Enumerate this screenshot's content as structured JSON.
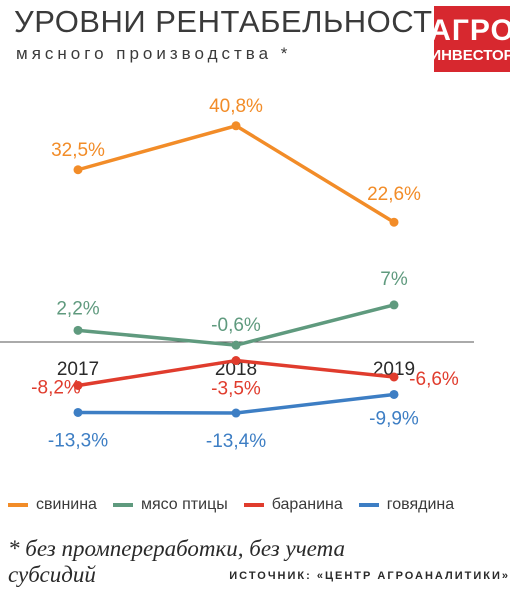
{
  "header": {
    "title": "УРОВНИ РЕНТАБЕЛЬНОСТИ",
    "subtitle": "мясного производства *"
  },
  "logo": {
    "line1": "АГРО",
    "line2": "ИНВЕСТОР",
    "color": "#d7282f"
  },
  "footer": {
    "footnote": "* без промпереработки, без учета субсидий",
    "source": "ИСТОЧНИК: «ЦЕНТР АГРОАНАЛИТИКИ»"
  },
  "chart_data": {
    "type": "line",
    "categories": [
      "2017",
      "2018",
      "2019"
    ],
    "grid": false,
    "legend_position": "bottom",
    "series": [
      {
        "name": "свинина",
        "color": "#f28c28",
        "values": [
          32.5,
          40.8,
          22.6
        ],
        "labels": [
          "32,5%",
          "40,8%",
          "22,6%"
        ]
      },
      {
        "name": "мясо птицы",
        "color": "#5f9a7e",
        "values": [
          2.2,
          -0.6,
          7
        ],
        "labels": [
          "2,2%",
          "-0,6%",
          "7%"
        ]
      },
      {
        "name": "баранина",
        "color": "#e03c2d",
        "values": [
          -8.2,
          -3.5,
          -6.6
        ],
        "labels": [
          "-8,2%",
          "-3,5%",
          "-6,6%"
        ]
      },
      {
        "name": "говядина",
        "color": "#3d7ec4",
        "values": [
          -13.3,
          -13.4,
          -9.9
        ],
        "labels": [
          "-13,3%",
          "-13,4%",
          "-9,9%"
        ]
      }
    ]
  }
}
